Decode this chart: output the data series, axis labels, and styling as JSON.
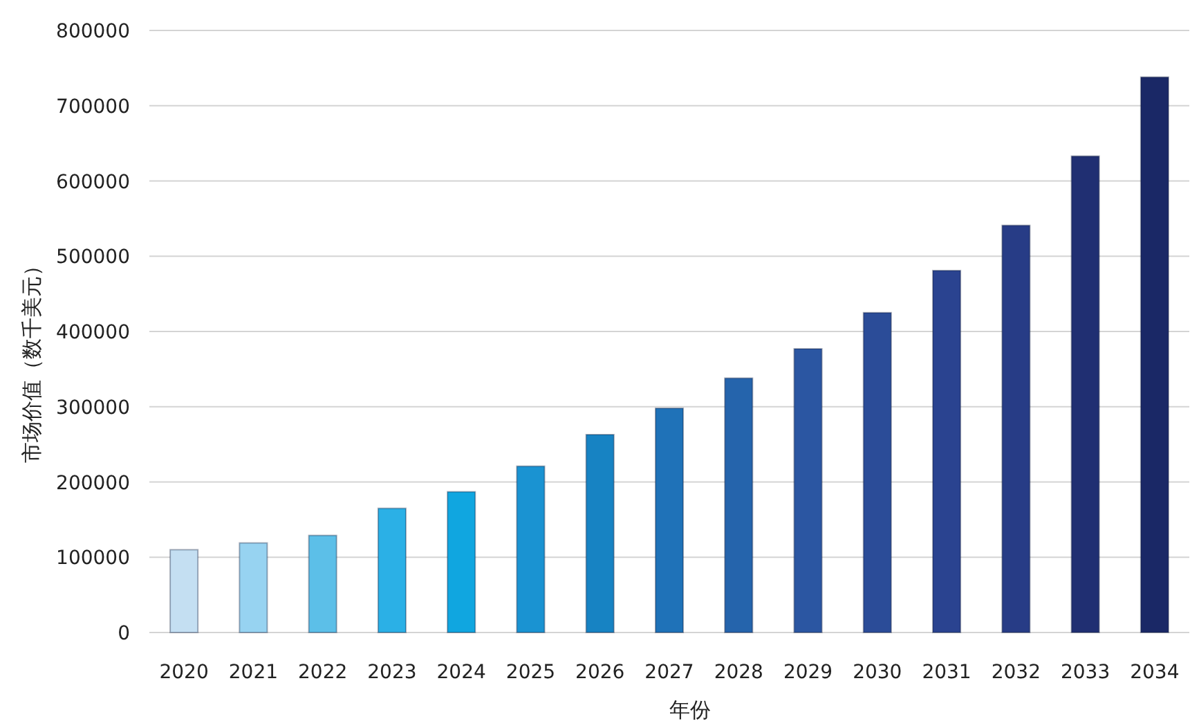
{
  "chart_data": {
    "type": "bar",
    "xlabel": "年份",
    "ylabel": "市场价值（数千美元）",
    "categories": [
      "2020",
      "2021",
      "2022",
      "2023",
      "2024",
      "2025",
      "2026",
      "2027",
      "2028",
      "2029",
      "2030",
      "2031",
      "2032",
      "2033",
      "2034"
    ],
    "values": [
      110000,
      119000,
      129000,
      165000,
      187000,
      221000,
      263000,
      298000,
      338000,
      377000,
      425000,
      481000,
      541000,
      633000,
      738000
    ],
    "colors": [
      "#c4dff2",
      "#97d3f1",
      "#5cbfe8",
      "#2bb0e6",
      "#10a6e0",
      "#1a93d2",
      "#1783c3",
      "#1f72b8",
      "#2564ac",
      "#2b56a2",
      "#2b4c98",
      "#2a4390",
      "#273c86",
      "#202f72",
      "#1a2866"
    ],
    "ylim": [
      0,
      800000
    ],
    "yticks": [
      0,
      100000,
      200000,
      300000,
      400000,
      500000,
      600000,
      700000,
      800000
    ],
    "grid": "y"
  }
}
